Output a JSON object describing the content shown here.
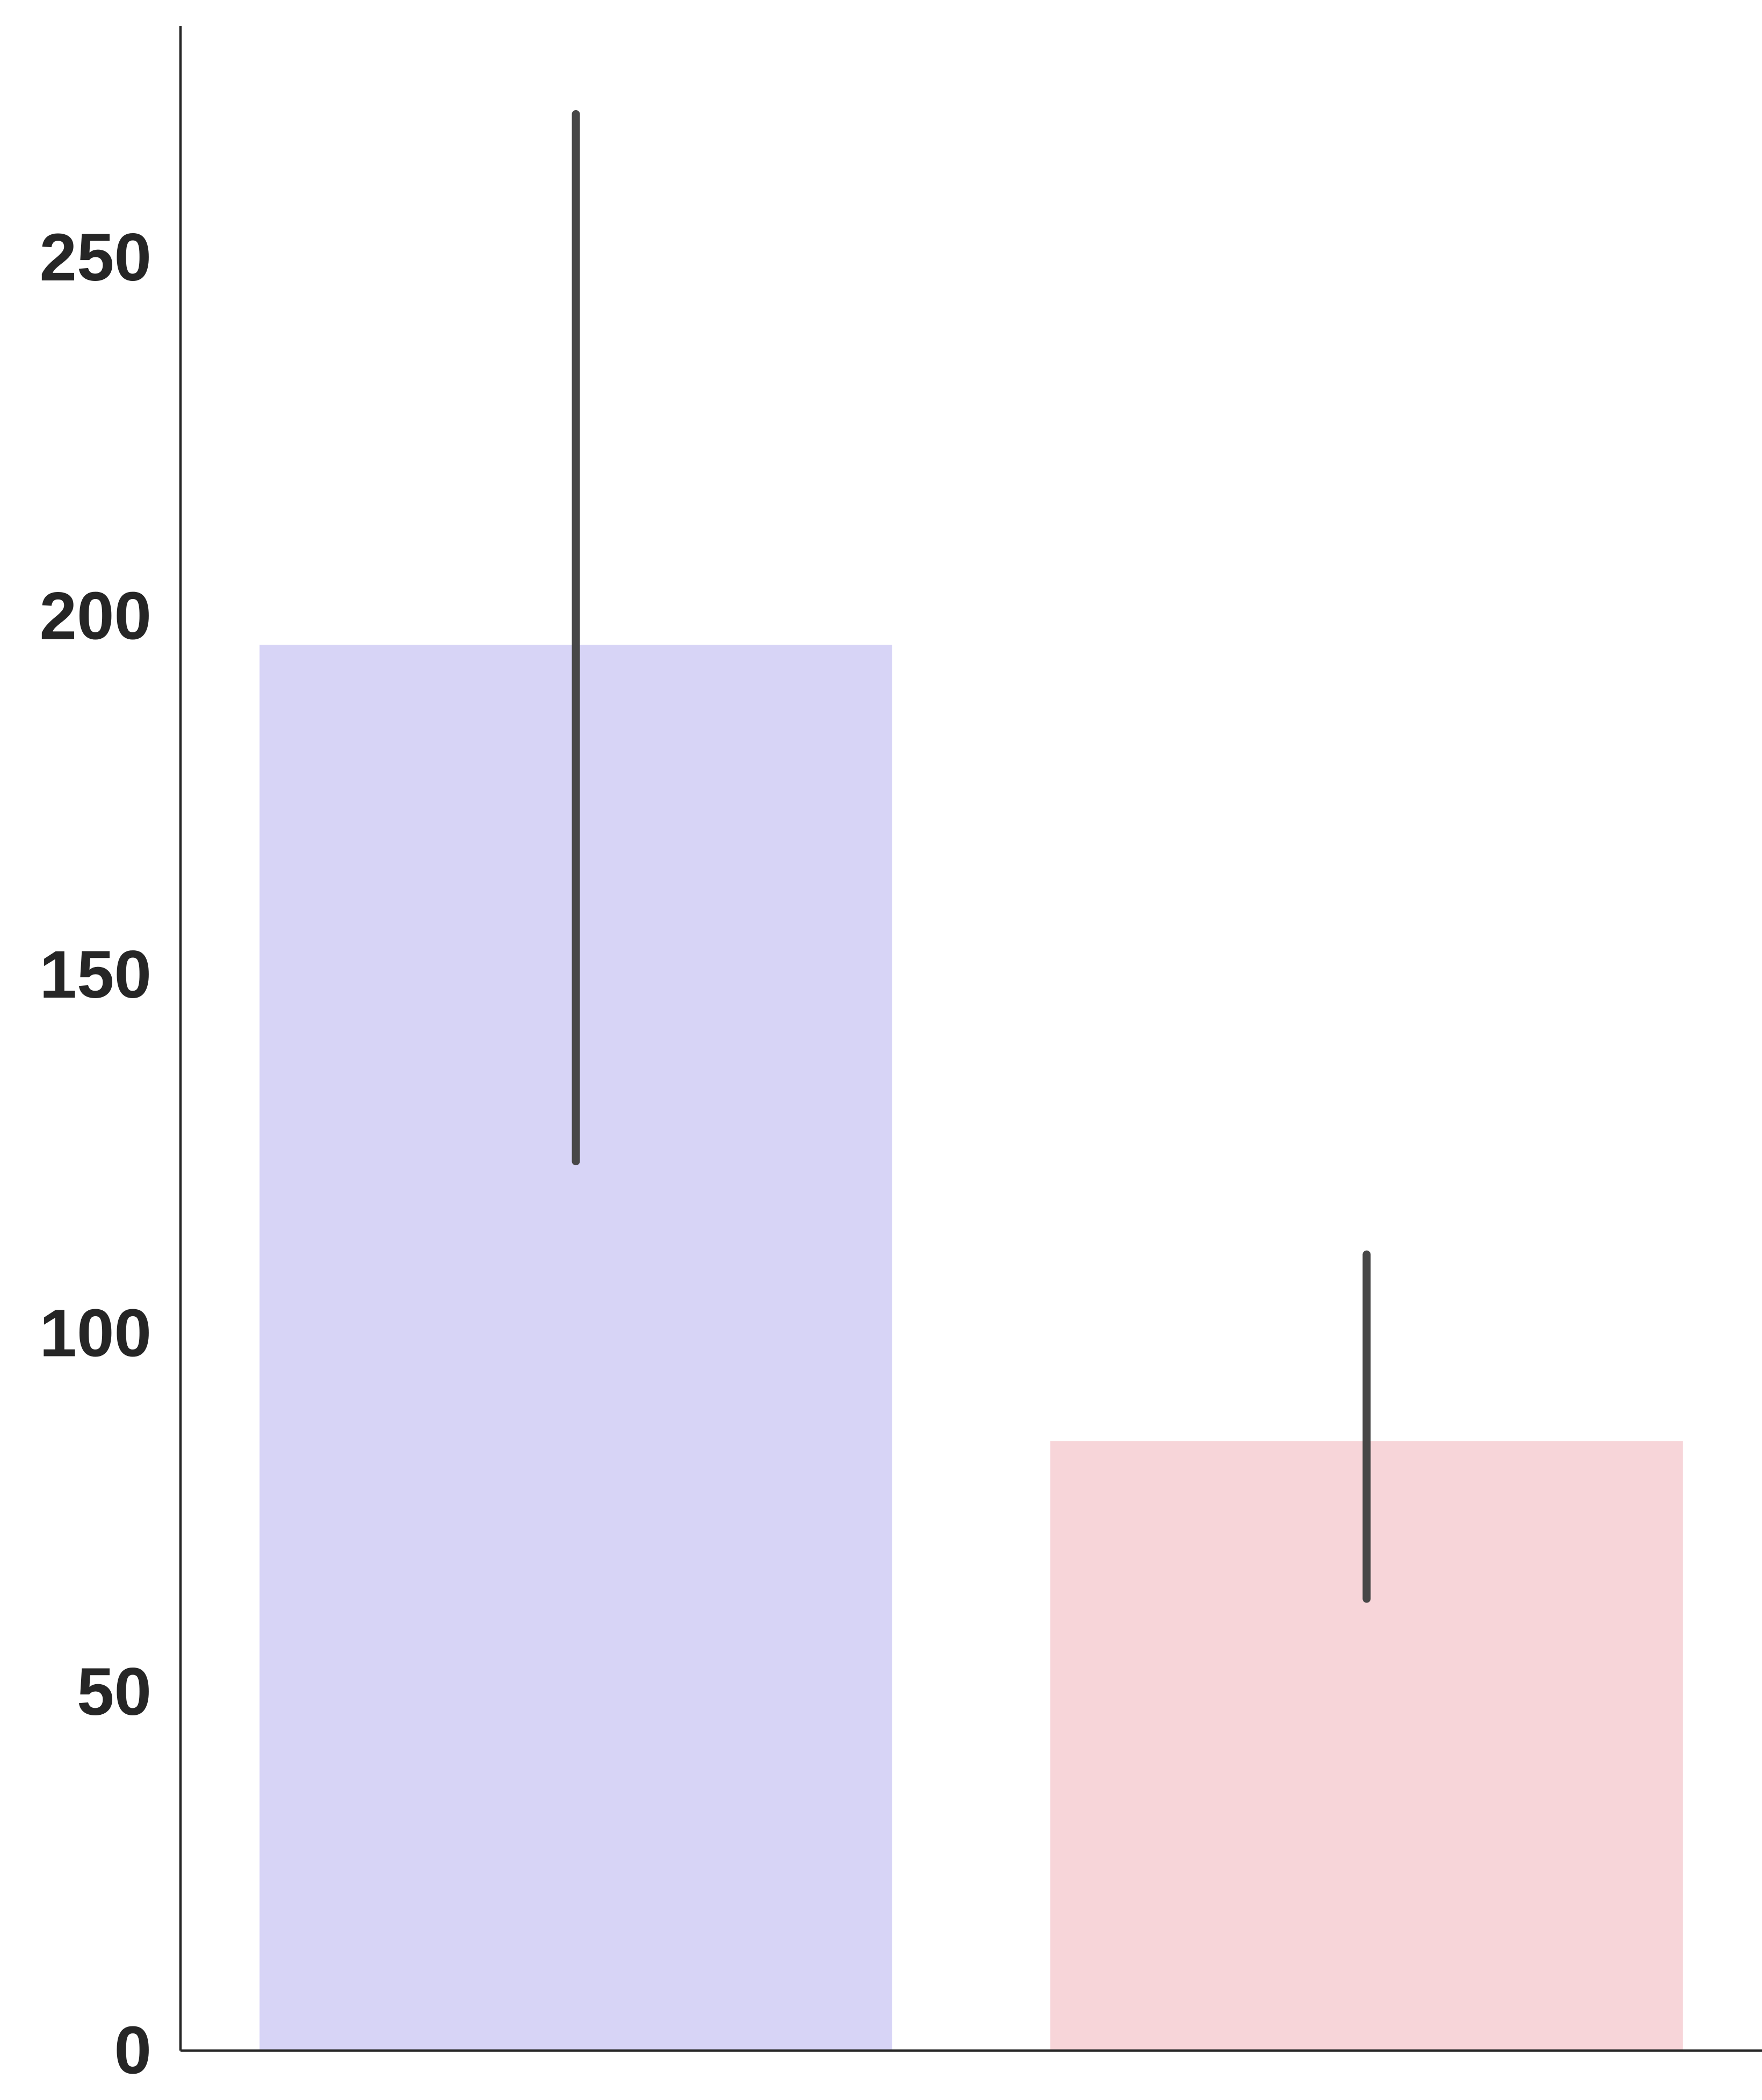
{
  "chart_data": {
    "type": "bar",
    "title": "",
    "xlabel": "",
    "ylabel": "",
    "categories": [
      "",
      ""
    ],
    "values": [
      196,
      85
    ],
    "error_bars": [
      {
        "low": 124,
        "high": 270
      },
      {
        "low": 63,
        "high": 111
      }
    ],
    "colors": [
      "#d7d4f6",
      "#f7d5d9"
    ],
    "error_color": "#474747",
    "axis_color": "#262626",
    "ylim": [
      0,
      285
    ],
    "yticks": [
      0,
      50,
      100,
      150,
      200,
      250
    ],
    "ytick_labels": [
      "0",
      "50",
      "100",
      "150",
      "200",
      "250"
    ],
    "grid": false,
    "legend": "none"
  }
}
